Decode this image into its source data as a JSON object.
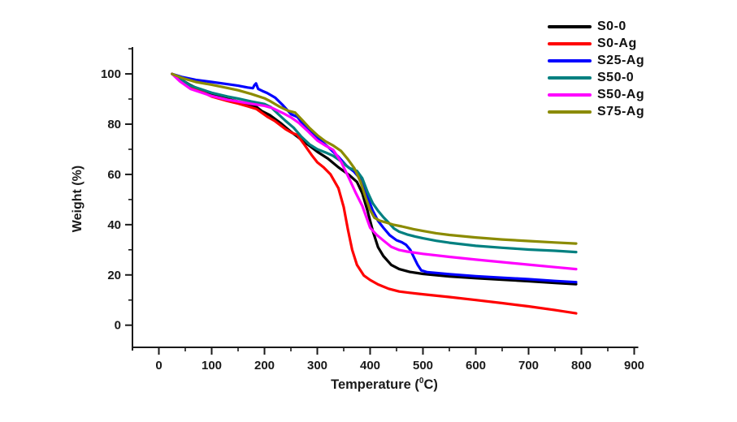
{
  "chart_data": {
    "type": "line",
    "title": "",
    "xlabel": {
      "prefix": "Temperature (",
      "sup": "0",
      "suffix": "C)"
    },
    "ylabel": "Weight (%)",
    "grid": false,
    "legend_position": "top-right",
    "x_axis": {
      "min": -50,
      "max": 900,
      "major_ticks": [
        0,
        100,
        200,
        300,
        400,
        500,
        600,
        700,
        800,
        900
      ],
      "minor_ticks": [
        50,
        150,
        250,
        350,
        450,
        550,
        650,
        750,
        850
      ]
    },
    "y_axis": {
      "min": -10,
      "max": 110,
      "major_ticks": [
        0,
        20,
        40,
        60,
        80,
        100
      ],
      "minor_ticks": [
        10,
        30,
        50,
        70,
        90,
        110
      ]
    },
    "series": [
      {
        "name": "S0-0",
        "color": "#000000",
        "points": [
          [
            25,
            100
          ],
          [
            40,
            98
          ],
          [
            60,
            95.5
          ],
          [
            100,
            91.5
          ],
          [
            130,
            90
          ],
          [
            150,
            89
          ],
          [
            170,
            87.8
          ],
          [
            185,
            86.8
          ],
          [
            195,
            85.2
          ],
          [
            210,
            83.6
          ],
          [
            230,
            80.5
          ],
          [
            250,
            77
          ],
          [
            270,
            73.8
          ],
          [
            300,
            69
          ],
          [
            320,
            66.3
          ],
          [
            340,
            62.8
          ],
          [
            360,
            59.8
          ],
          [
            375,
            57
          ],
          [
            385,
            52.5
          ],
          [
            395,
            45.5
          ],
          [
            405,
            37.5
          ],
          [
            415,
            31
          ],
          [
            425,
            27.5
          ],
          [
            440,
            24
          ],
          [
            455,
            22.3
          ],
          [
            475,
            21.2
          ],
          [
            500,
            20.4
          ],
          [
            550,
            19.4
          ],
          [
            600,
            18.7
          ],
          [
            650,
            18.1
          ],
          [
            700,
            17.5
          ],
          [
            750,
            16.8
          ],
          [
            790,
            16.3
          ]
        ]
      },
      {
        "name": "S0-Ag",
        "color": "#FF0000",
        "points": [
          [
            25,
            100
          ],
          [
            40,
            97.5
          ],
          [
            60,
            95
          ],
          [
            100,
            91
          ],
          [
            130,
            89.2
          ],
          [
            150,
            88.2
          ],
          [
            170,
            87
          ],
          [
            185,
            86
          ],
          [
            193,
            84.8
          ],
          [
            205,
            83
          ],
          [
            220,
            81.2
          ],
          [
            240,
            78
          ],
          [
            252,
            76.5
          ],
          [
            262,
            75.7
          ],
          [
            275,
            72
          ],
          [
            290,
            67.5
          ],
          [
            300,
            64.8
          ],
          [
            312,
            62.8
          ],
          [
            325,
            60
          ],
          [
            340,
            54.5
          ],
          [
            350,
            47
          ],
          [
            358,
            38
          ],
          [
            366,
            30
          ],
          [
            375,
            24
          ],
          [
            388,
            19.8
          ],
          [
            400,
            18
          ],
          [
            415,
            16.2
          ],
          [
            435,
            14.5
          ],
          [
            455,
            13.4
          ],
          [
            475,
            12.9
          ],
          [
            500,
            12.3
          ],
          [
            550,
            11.2
          ],
          [
            600,
            10
          ],
          [
            650,
            8.8
          ],
          [
            700,
            7.5
          ],
          [
            750,
            6
          ],
          [
            790,
            4.7
          ]
        ]
      },
      {
        "name": "S25-Ag",
        "color": "#0000FF",
        "points": [
          [
            25,
            100
          ],
          [
            45,
            98.7
          ],
          [
            70,
            97.6
          ],
          [
            100,
            96.8
          ],
          [
            130,
            95.9
          ],
          [
            150,
            95.3
          ],
          [
            168,
            94.6
          ],
          [
            178,
            94.3
          ],
          [
            181,
            95.5
          ],
          [
            184,
            96.2
          ],
          [
            188,
            94
          ],
          [
            196,
            93.2
          ],
          [
            205,
            92.4
          ],
          [
            220,
            90.6
          ],
          [
            235,
            87.5
          ],
          [
            250,
            84
          ],
          [
            262,
            82.9
          ],
          [
            275,
            79.5
          ],
          [
            300,
            74.5
          ],
          [
            320,
            71
          ],
          [
            340,
            67
          ],
          [
            355,
            63.5
          ],
          [
            370,
            61
          ],
          [
            382,
            58
          ],
          [
            395,
            51
          ],
          [
            405,
            45.5
          ],
          [
            415,
            41.5
          ],
          [
            425,
            38.8
          ],
          [
            437,
            35.8
          ],
          [
            450,
            33.8
          ],
          [
            460,
            33
          ],
          [
            468,
            32
          ],
          [
            476,
            30
          ],
          [
            483,
            27
          ],
          [
            490,
            24
          ],
          [
            497,
            21.8
          ],
          [
            508,
            21.1
          ],
          [
            525,
            20.8
          ],
          [
            550,
            20.3
          ],
          [
            600,
            19.5
          ],
          [
            650,
            18.9
          ],
          [
            700,
            18.3
          ],
          [
            750,
            17.6
          ],
          [
            790,
            17.1
          ]
        ]
      },
      {
        "name": "S50-0",
        "color": "#008080",
        "points": [
          [
            25,
            100
          ],
          [
            40,
            98
          ],
          [
            60,
            95.3
          ],
          [
            100,
            92.5
          ],
          [
            130,
            91
          ],
          [
            150,
            90.2
          ],
          [
            175,
            89
          ],
          [
            200,
            88
          ],
          [
            212,
            86.8
          ],
          [
            225,
            84.2
          ],
          [
            240,
            81.3
          ],
          [
            255,
            78.6
          ],
          [
            270,
            75
          ],
          [
            285,
            72
          ],
          [
            300,
            70
          ],
          [
            315,
            68.8
          ],
          [
            330,
            67.4
          ],
          [
            345,
            65.2
          ],
          [
            360,
            62.6
          ],
          [
            375,
            61.4
          ],
          [
            385,
            58.5
          ],
          [
            395,
            53
          ],
          [
            405,
            48.5
          ],
          [
            415,
            45.5
          ],
          [
            425,
            43
          ],
          [
            435,
            40.8
          ],
          [
            445,
            38.5
          ],
          [
            455,
            37.2
          ],
          [
            470,
            36.1
          ],
          [
            485,
            35.3
          ],
          [
            500,
            34.6
          ],
          [
            525,
            33.6
          ],
          [
            550,
            32.8
          ],
          [
            600,
            31.6
          ],
          [
            650,
            30.8
          ],
          [
            700,
            30.1
          ],
          [
            750,
            29.6
          ],
          [
            790,
            29.1
          ]
        ]
      },
      {
        "name": "S50-Ag",
        "color": "#FF00FF",
        "points": [
          [
            25,
            100
          ],
          [
            40,
            97
          ],
          [
            60,
            94
          ],
          [
            100,
            91.2
          ],
          [
            130,
            89.7
          ],
          [
            150,
            89
          ],
          [
            175,
            88.1
          ],
          [
            200,
            87.3
          ],
          [
            215,
            86.4
          ],
          [
            235,
            84.4
          ],
          [
            250,
            82.7
          ],
          [
            265,
            80.5
          ],
          [
            280,
            77.6
          ],
          [
            300,
            73.5
          ],
          [
            315,
            71.5
          ],
          [
            330,
            69.8
          ],
          [
            345,
            65
          ],
          [
            360,
            58.5
          ],
          [
            372,
            53
          ],
          [
            385,
            47.5
          ],
          [
            400,
            38.8
          ],
          [
            412,
            36
          ],
          [
            425,
            33.7
          ],
          [
            440,
            31.2
          ],
          [
            455,
            29.9
          ],
          [
            470,
            29.3
          ],
          [
            500,
            28.4
          ],
          [
            550,
            27.2
          ],
          [
            600,
            26.1
          ],
          [
            650,
            25.1
          ],
          [
            700,
            24.1
          ],
          [
            750,
            23.1
          ],
          [
            790,
            22.3
          ]
        ]
      },
      {
        "name": "S75-Ag",
        "color": "#8B8B00",
        "points": [
          [
            25,
            100
          ],
          [
            45,
            98.3
          ],
          [
            70,
            96.8
          ],
          [
            100,
            95.7
          ],
          [
            130,
            94.4
          ],
          [
            150,
            93.5
          ],
          [
            175,
            92
          ],
          [
            200,
            90.3
          ],
          [
            212,
            89
          ],
          [
            228,
            87
          ],
          [
            245,
            85.3
          ],
          [
            258,
            84.6
          ],
          [
            272,
            81.5
          ],
          [
            285,
            78.5
          ],
          [
            300,
            75.6
          ],
          [
            315,
            73.2
          ],
          [
            330,
            71.5
          ],
          [
            345,
            69.3
          ],
          [
            358,
            66
          ],
          [
            370,
            62.5
          ],
          [
            382,
            57
          ],
          [
            392,
            50.5
          ],
          [
            400,
            45.8
          ],
          [
            408,
            42.8
          ],
          [
            418,
            41.6
          ],
          [
            430,
            40.9
          ],
          [
            445,
            39.9
          ],
          [
            460,
            39.3
          ],
          [
            480,
            38.3
          ],
          [
            500,
            37.5
          ],
          [
            525,
            36.6
          ],
          [
            550,
            35.9
          ],
          [
            600,
            34.9
          ],
          [
            650,
            34.1
          ],
          [
            700,
            33.5
          ],
          [
            750,
            32.9
          ],
          [
            790,
            32.5
          ]
        ]
      }
    ]
  }
}
